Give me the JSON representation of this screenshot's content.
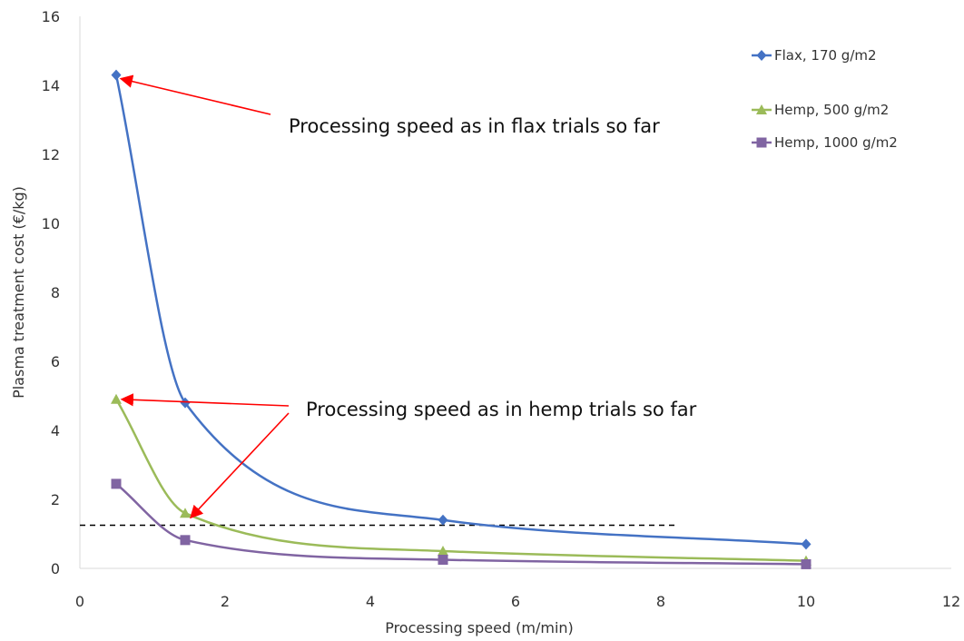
{
  "chart_data": {
    "type": "line",
    "title": "",
    "xlabel": "Processing speed (m/min)",
    "ylabel": "Plasma treatment cost (€/kg)",
    "xlim": [
      0,
      12
    ],
    "ylim": [
      0,
      16
    ],
    "x_ticks": [
      0,
      2,
      4,
      6,
      8,
      10,
      12
    ],
    "y_ticks": [
      0,
      2,
      4,
      6,
      8,
      10,
      12,
      14,
      16
    ],
    "grid": false,
    "smooth": true,
    "legend_position": "top-right",
    "series": [
      {
        "name": "Flax, 170 g/m2",
        "color": "#4472c4",
        "marker": "diamond",
        "x": [
          0.5,
          1.45,
          5,
          10
        ],
        "y": [
          14.3,
          4.8,
          1.4,
          0.7
        ]
      },
      {
        "name": "Hemp, 500 g/m2",
        "color": "#9bbb59",
        "marker": "triangle",
        "x": [
          0.5,
          1.45,
          5,
          10
        ],
        "y": [
          4.9,
          1.6,
          0.5,
          0.22
        ]
      },
      {
        "name": "Hemp, 1000 g/m2",
        "color": "#8064a2",
        "marker": "square",
        "x": [
          0.5,
          1.45,
          5,
          10
        ],
        "y": [
          2.45,
          0.82,
          0.25,
          0.12
        ]
      }
    ],
    "reference_line": {
      "style": "dashed",
      "color": "#000000",
      "y": 1.25,
      "x": [
        0,
        8.2
      ]
    },
    "annotations": [
      {
        "text": "Processing speed as in flax trials so far",
        "arrow_color": "#ff0000",
        "points_to": [
          {
            "x": 0.5,
            "y": 14.3
          }
        ]
      },
      {
        "text": "Processing speed as in hemp trials so far",
        "arrow_color": "#ff0000",
        "points_to": [
          {
            "x": 0.5,
            "y": 4.9
          },
          {
            "x": 1.45,
            "y": 1.6
          }
        ]
      }
    ]
  }
}
